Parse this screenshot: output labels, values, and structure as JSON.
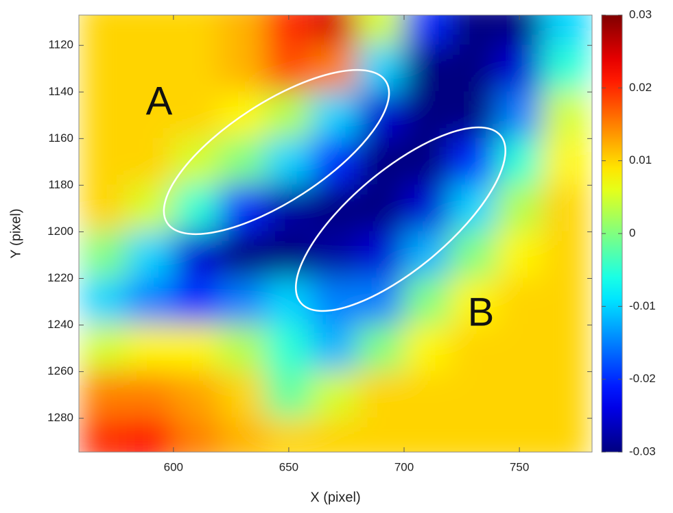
{
  "chart_data": {
    "type": "heatmap",
    "xlabel": "X (pixel)",
    "ylabel": "Y (pixel)",
    "x": [
      570,
      590,
      610,
      630,
      650,
      670,
      690,
      710,
      730,
      750,
      770
    ],
    "y": [
      1110,
      1130,
      1150,
      1170,
      1190,
      1210,
      1230,
      1250,
      1270,
      1290
    ],
    "z": [
      [
        0.01,
        0.01,
        0.01,
        0.012,
        0.02,
        0.025,
        0.005,
        -0.02,
        -0.03,
        -0.03,
        -0.01
      ],
      [
        0.01,
        0.01,
        0.01,
        0.012,
        0.018,
        0.015,
        -0.01,
        -0.03,
        -0.03,
        -0.025,
        -0.005
      ],
      [
        0.01,
        0.01,
        0.01,
        0.008,
        0.003,
        -0.01,
        -0.025,
        -0.03,
        -0.03,
        -0.015,
        0.005
      ],
      [
        0.01,
        0.01,
        0.005,
        0,
        -0.01,
        -0.02,
        -0.03,
        -0.03,
        -0.02,
        -0.005,
        0.008
      ],
      [
        0.01,
        0.005,
        -0.005,
        -0.02,
        -0.028,
        -0.03,
        -0.03,
        -0.025,
        -0.01,
        0.003,
        0.01
      ],
      [
        0,
        -0.01,
        -0.025,
        -0.03,
        -0.03,
        -0.028,
        -0.025,
        -0.012,
        0,
        0.008,
        0.01
      ],
      [
        -0.01,
        -0.015,
        -0.02,
        -0.015,
        -0.01,
        -0.015,
        -0.015,
        0,
        0.008,
        0.01,
        0.01
      ],
      [
        0.005,
        0.008,
        0.008,
        0.003,
        -0.005,
        -0.012,
        0,
        0.008,
        0.01,
        0.01,
        0.01
      ],
      [
        0.015,
        0.015,
        0.013,
        0.01,
        -0.002,
        0.005,
        0.01,
        0.01,
        0.01,
        0.01,
        0.01
      ],
      [
        0.02,
        0.022,
        0.015,
        0.012,
        0.01,
        0.01,
        0.01,
        0.01,
        0.01,
        0.01,
        0.01
      ]
    ],
    "xlim": [
      559,
      781.5
    ],
    "ylim": [
      1107,
      1294.5
    ],
    "y_reversed": true,
    "xticks": [
      600,
      650,
      700,
      750
    ],
    "yticks": [
      1120,
      1140,
      1160,
      1180,
      1200,
      1220,
      1240,
      1260,
      1280
    ],
    "colormap": "jet",
    "clim": [
      -0.03,
      0.03
    ],
    "cticks": [
      0.03,
      0.02,
      0.01,
      0,
      -0.01,
      -0.02,
      -0.03
    ],
    "annotations": [
      "A",
      "B"
    ]
  }
}
